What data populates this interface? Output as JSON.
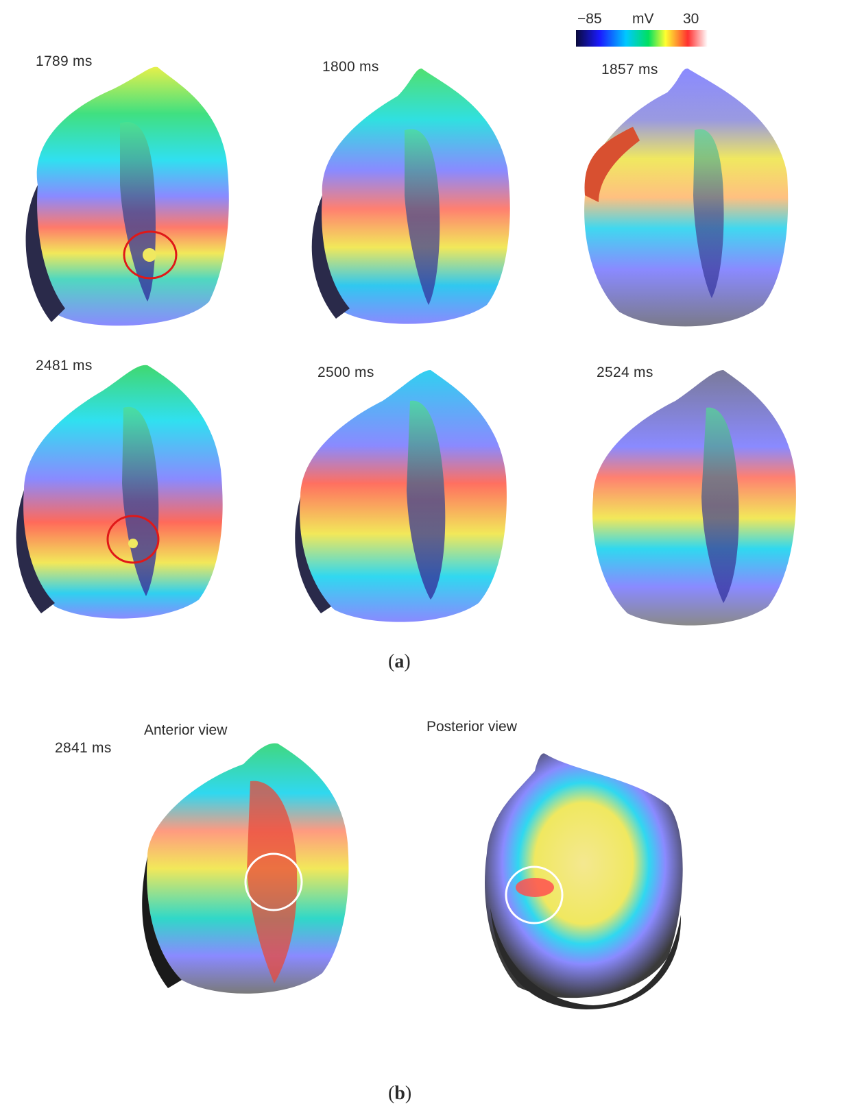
{
  "colorbar": {
    "min_label": "−85",
    "unit_label": "mV",
    "max_label": "30",
    "min": -85,
    "max": 30,
    "unit": "mV",
    "colors": [
      "#0a0a3a",
      "#1a1aff",
      "#00c8ff",
      "#00e060",
      "#ffff30",
      "#ff3030",
      "#ffffff"
    ]
  },
  "panel_a": {
    "caption_open": "(",
    "caption_letter": "a",
    "caption_close": ")",
    "frames": [
      {
        "time": "1789 ms",
        "marker": "red-circle"
      },
      {
        "time": "1800 ms",
        "marker": ""
      },
      {
        "time": "1857 ms",
        "marker": ""
      },
      {
        "time": "2481 ms",
        "marker": "red-circle"
      },
      {
        "time": "2500 ms",
        "marker": ""
      },
      {
        "time": "2524 ms",
        "marker": ""
      }
    ]
  },
  "panel_b": {
    "caption_open": "(",
    "caption_letter": "b",
    "caption_close": ")",
    "time": "2841 ms",
    "views": [
      {
        "label": "Anterior view",
        "marker": "white-circle"
      },
      {
        "label": "Posterior view",
        "marker": "white-circle"
      }
    ]
  },
  "colors": {
    "red_marker": "#e01818",
    "white_marker": "#ffffff",
    "repolarized": "#8a8aff",
    "tissue_gray": "#7a7a7a"
  }
}
